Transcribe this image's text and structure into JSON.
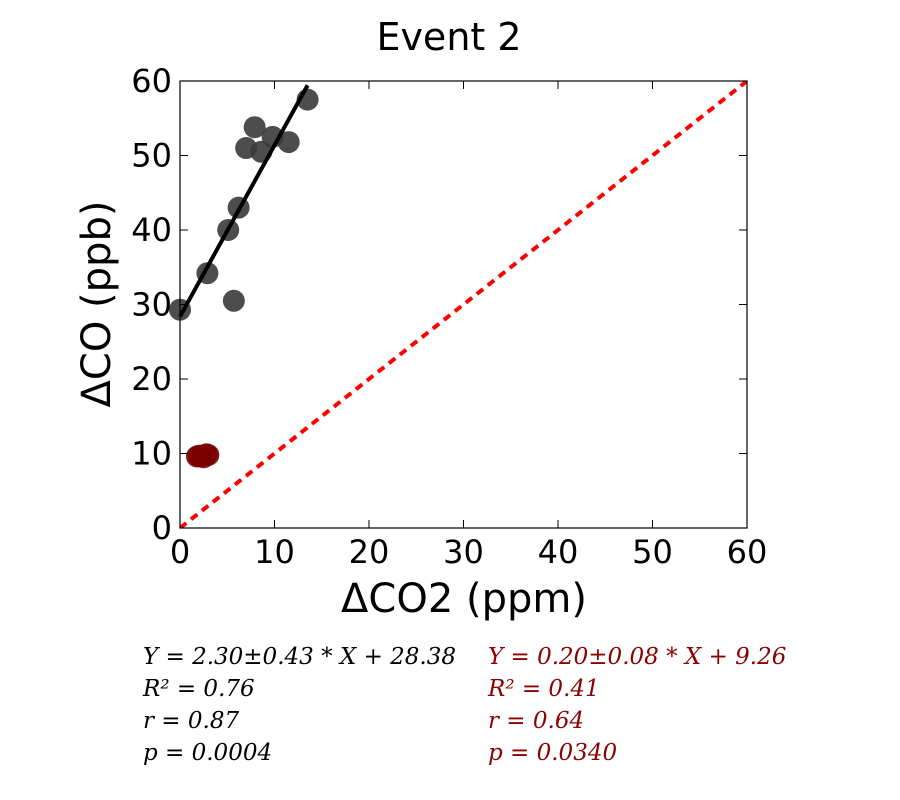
{
  "chart_data": {
    "type": "scatter",
    "title": "Event 2",
    "xlabel": "ΔCO2 (ppm)",
    "ylabel": "ΔCO (ppb)",
    "xlim": [
      0,
      60
    ],
    "ylim": [
      0,
      60
    ],
    "xticks": [
      "0",
      "10",
      "20",
      "30",
      "40",
      "50",
      "60"
    ],
    "yticks": [
      "0",
      "10",
      "20",
      "30",
      "40",
      "50",
      "60"
    ],
    "grid": false,
    "series": [
      {
        "color": "#3a3a3a",
        "points": [
          [
            0.0,
            29.3
          ],
          [
            2.9,
            34.2
          ],
          [
            5.1,
            40.0
          ],
          [
            5.7,
            30.5
          ],
          [
            6.2,
            43.0
          ],
          [
            7.0,
            51.0
          ],
          [
            7.9,
            53.8
          ],
          [
            8.6,
            50.5
          ],
          [
            9.8,
            52.5
          ],
          [
            11.5,
            51.8
          ],
          [
            13.5,
            57.5
          ]
        ],
        "fit": {
          "slope": 2.3,
          "intercept": 28.38,
          "x_range": [
            0,
            13.5
          ],
          "color": "#000000"
        },
        "stats": [
          "Y = 2.30±0.43 * X + 28.38",
          "R² = 0.76",
          "r = 0.87",
          "p = 0.0004"
        ]
      },
      {
        "color": "#7a0000",
        "points": [
          [
            1.8,
            9.6
          ],
          [
            2.2,
            9.7
          ],
          [
            2.5,
            9.5
          ],
          [
            2.8,
            9.9
          ],
          [
            3.0,
            9.8
          ],
          [
            2.0,
            9.7
          ]
        ],
        "stats": [
          "Y = 0.20±0.08 * X + 9.26",
          "R² = 0.41",
          "r = 0.64",
          "p = 0.0340"
        ]
      }
    ],
    "reference_line": {
      "type": "1:1",
      "color": "#ff0000",
      "style": "dashed"
    }
  }
}
